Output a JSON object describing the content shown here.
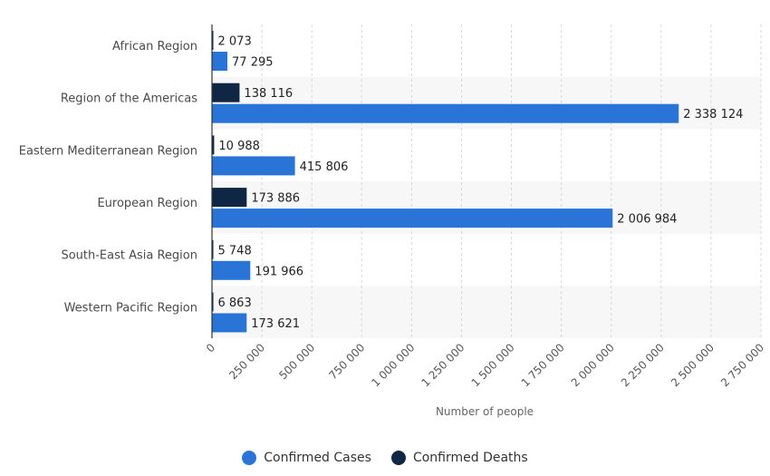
{
  "chart_data": {
    "type": "bar",
    "orientation": "horizontal",
    "categories": [
      "African Region",
      "Region of the Americas",
      "Eastern Mediterranean Region",
      "European Region",
      "South-East Asia Region",
      "Western Pacific Region"
    ],
    "series": [
      {
        "name": "Confirmed Deaths",
        "color": "#0f2744",
        "values": [
          2073,
          138116,
          10988,
          173886,
          5748,
          6863
        ],
        "labels": [
          "2 073",
          "138 116",
          "10 988",
          "173 886",
          "5 748",
          "6 863"
        ]
      },
      {
        "name": "Confirmed Cases",
        "color": "#2a74d8",
        "values": [
          77295,
          2338124,
          415806,
          2006984,
          191966,
          173621
        ],
        "labels": [
          "77 295",
          "2 338 124",
          "415 806",
          "2 006 984",
          "191 966",
          "173 621"
        ]
      }
    ],
    "xlabel": "Number of people",
    "ylabel": "",
    "xlim": [
      0,
      2750000
    ],
    "xticks": [
      0,
      250000,
      500000,
      750000,
      1000000,
      1250000,
      1500000,
      1750000,
      2000000,
      2250000,
      2500000,
      2750000
    ],
    "xtick_labels": [
      "0",
      "250 000",
      "500 000",
      "750 000",
      "1 000 000",
      "1 250 000",
      "1 500 000",
      "1 750 000",
      "2 000 000",
      "2 250 000",
      "2 500 000",
      "2 750 000"
    ],
    "grid": "vertical dashed",
    "legend": {
      "placement": "bottom-center",
      "items": [
        {
          "label": "Confirmed Cases",
          "color": "#2a74d8"
        },
        {
          "label": "Confirmed Deaths",
          "color": "#0f2744"
        }
      ]
    },
    "band_color": "#f7f7f7"
  }
}
